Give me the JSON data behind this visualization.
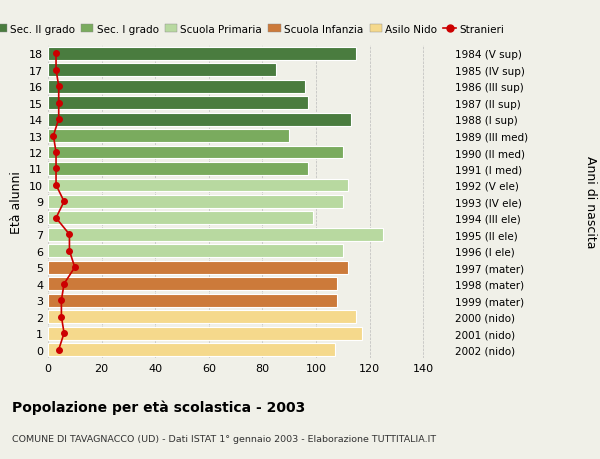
{
  "ages": [
    18,
    17,
    16,
    15,
    14,
    13,
    12,
    11,
    10,
    9,
    8,
    7,
    6,
    5,
    4,
    3,
    2,
    1,
    0
  ],
  "right_labels": [
    "1984 (V sup)",
    "1985 (IV sup)",
    "1986 (III sup)",
    "1987 (II sup)",
    "1988 (I sup)",
    "1989 (III med)",
    "1990 (II med)",
    "1991 (I med)",
    "1992 (V ele)",
    "1993 (IV ele)",
    "1994 (III ele)",
    "1995 (II ele)",
    "1996 (I ele)",
    "1997 (mater)",
    "1998 (mater)",
    "1999 (mater)",
    "2000 (nido)",
    "2001 (nido)",
    "2002 (nido)"
  ],
  "bar_values": [
    115,
    85,
    96,
    97,
    113,
    90,
    110,
    97,
    112,
    110,
    99,
    125,
    110,
    112,
    108,
    108,
    115,
    117,
    107
  ],
  "bar_colors": [
    "#4a7c3f",
    "#4a7c3f",
    "#4a7c3f",
    "#4a7c3f",
    "#4a7c3f",
    "#7aab5e",
    "#7aab5e",
    "#7aab5e",
    "#b8d9a0",
    "#b8d9a0",
    "#b8d9a0",
    "#b8d9a0",
    "#b8d9a0",
    "#cc7a3a",
    "#cc7a3a",
    "#cc7a3a",
    "#f5d98c",
    "#f5d98c",
    "#f5d98c"
  ],
  "stranieri_values": [
    3,
    3,
    4,
    4,
    4,
    2,
    3,
    3,
    3,
    6,
    3,
    8,
    8,
    10,
    6,
    5,
    5,
    6,
    4
  ],
  "legend_labels": [
    "Sec. II grado",
    "Sec. I grado",
    "Scuola Primaria",
    "Scuola Infanzia",
    "Asilo Nido",
    "Stranieri"
  ],
  "legend_colors": [
    "#4a7c3f",
    "#7aab5e",
    "#b8d9a0",
    "#cc7a3a",
    "#f5d98c",
    "#cc0000"
  ],
  "title": "Popolazione per età scolastica - 2003",
  "subtitle": "COMUNE DI TAVAGNACCO (UD) - Dati ISTAT 1° gennaio 2003 - Elaborazione TUTTITALIA.IT",
  "ylabel_left": "Età alunni",
  "ylabel_right": "Anni di nascita",
  "xlim": [
    0,
    150
  ],
  "bg_color": "#f0f0e8"
}
